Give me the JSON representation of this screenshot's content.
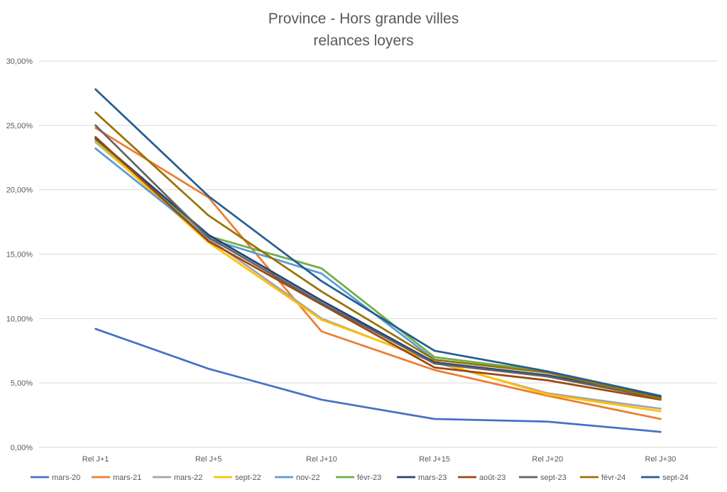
{
  "chart_data": {
    "type": "line",
    "title": [
      "Province - Hors grande villes",
      "relances loyers"
    ],
    "categories": [
      "Rel J+1",
      "Rel J+5",
      "Rel J+10",
      "Rel J+15",
      "Rel J+20",
      "Rel J+30"
    ],
    "ylim": [
      0,
      30
    ],
    "yticks": [
      0,
      5,
      10,
      15,
      20,
      25,
      30
    ],
    "ytick_labels": [
      "0,00%",
      "5,00%",
      "10,00%",
      "15,00%",
      "20,00%",
      "25,00%",
      "30,00%"
    ],
    "y_unit": "%",
    "grid": true,
    "legend_position": "bottom",
    "series": [
      {
        "name": "mars-20",
        "color": "#4472C4",
        "values": [
          9.2,
          6.1,
          3.7,
          2.2,
          2.0,
          1.2
        ]
      },
      {
        "name": "mars-21",
        "color": "#ED7D31",
        "values": [
          24.8,
          19.4,
          9.0,
          6.0,
          4.0,
          2.2
        ]
      },
      {
        "name": "mars-22",
        "color": "#A5A5A5",
        "values": [
          23.7,
          16.2,
          10.0,
          6.6,
          4.2,
          3.0
        ]
      },
      {
        "name": "sept-22",
        "color": "#FFC000",
        "values": [
          23.8,
          15.9,
          9.9,
          6.7,
          4.1,
          2.8
        ]
      },
      {
        "name": "nov-22",
        "color": "#5B9BD5",
        "values": [
          23.2,
          16.2,
          13.5,
          6.8,
          5.8,
          3.8
        ]
      },
      {
        "name": "févr-23",
        "color": "#70AD47",
        "values": [
          23.9,
          16.4,
          13.9,
          7.0,
          5.9,
          3.9
        ]
      },
      {
        "name": "mars-23",
        "color": "#264478",
        "values": [
          24.0,
          16.5,
          11.4,
          6.6,
          5.6,
          3.9
        ]
      },
      {
        "name": "août-23",
        "color": "#9E480E",
        "values": [
          24.1,
          16.0,
          11.1,
          6.2,
          5.2,
          3.7
        ]
      },
      {
        "name": "sept-23",
        "color": "#636363",
        "values": [
          25.0,
          16.3,
          11.2,
          6.5,
          5.5,
          3.8
        ]
      },
      {
        "name": "févr-24",
        "color": "#997300",
        "values": [
          26.0,
          18.0,
          12.1,
          6.8,
          5.8,
          3.8
        ]
      },
      {
        "name": "sept-24",
        "color": "#255E91",
        "values": [
          27.8,
          19.5,
          12.9,
          7.5,
          5.9,
          4.0
        ]
      }
    ]
  }
}
